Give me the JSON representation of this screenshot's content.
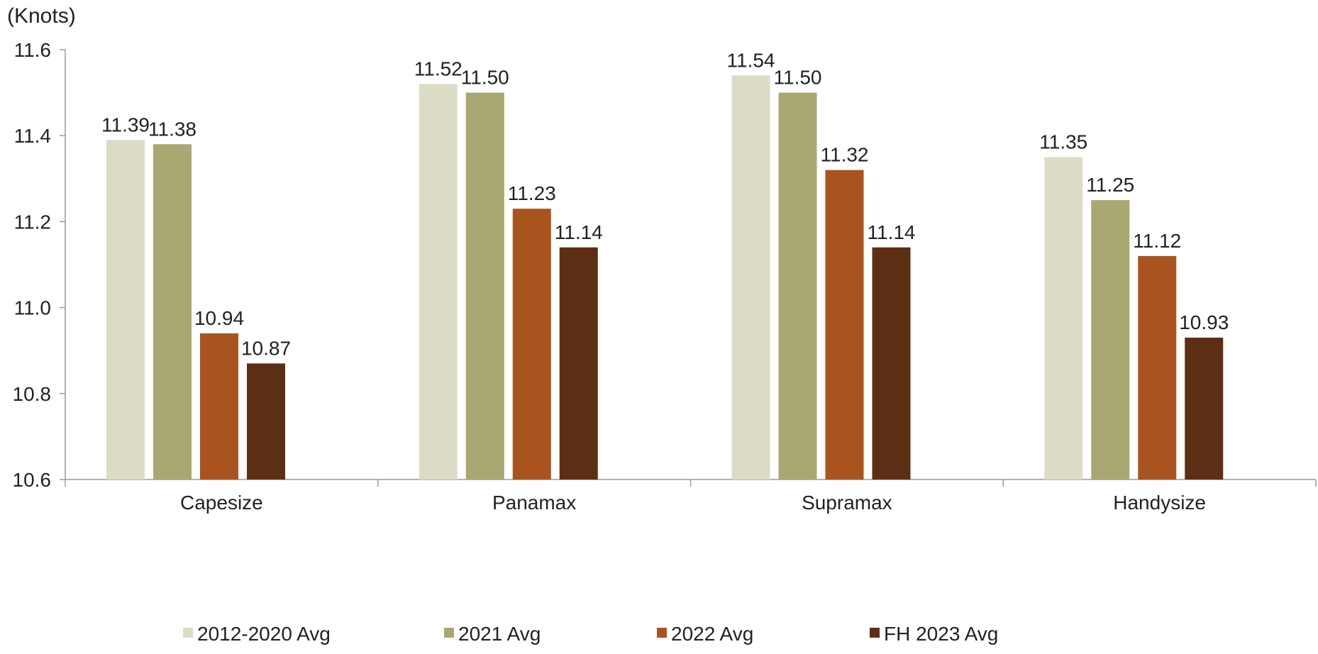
{
  "chart_data": {
    "type": "bar",
    "unit_label": "(Knots)",
    "categories": [
      "Capesize",
      "Panamax",
      "Supramax",
      "Handysize"
    ],
    "series": [
      {
        "name": "2012-2020 Avg",
        "color": "#dcdcc6",
        "values": [
          11.39,
          11.52,
          11.54,
          11.35
        ],
        "labels": [
          "11.39",
          "11.52",
          "11.54",
          "11.35"
        ]
      },
      {
        "name": "2021 Avg",
        "color": "#a9a872",
        "values": [
          11.38,
          11.5,
          11.5,
          11.25
        ],
        "labels": [
          "11.38",
          "11.50",
          "11.50",
          "11.25"
        ]
      },
      {
        "name": "2022 Avg",
        "color": "#a9541f",
        "values": [
          10.94,
          11.23,
          11.32,
          11.12
        ],
        "labels": [
          "10.94",
          "11.23",
          "11.32",
          "11.12"
        ]
      },
      {
        "name": "FH 2023 Avg",
        "color": "#5c2e14",
        "values": [
          10.87,
          11.14,
          11.14,
          10.93
        ],
        "labels": [
          "10.87",
          "11.14",
          "11.14",
          "10.93"
        ]
      }
    ],
    "ylim": [
      10.6,
      11.6
    ],
    "yticks": [
      "10.6",
      "10.8",
      "11.0",
      "11.2",
      "11.4",
      "11.6"
    ],
    "grid": false,
    "legend_position": "bottom"
  }
}
